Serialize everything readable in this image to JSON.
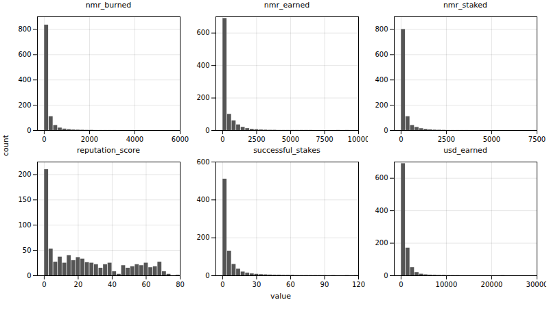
{
  "chart_data": [
    {
      "type": "histogram",
      "title": "nmr_burned",
      "color": "#555555",
      "grid": true,
      "xlim": [
        -300,
        6000
      ],
      "ylim": [
        0,
        900
      ],
      "xticks": [
        0,
        2000,
        4000,
        6000
      ],
      "yticks": [
        0,
        200,
        400,
        600,
        800
      ],
      "bins": [
        0,
        200,
        400,
        600,
        800,
        1000,
        1200,
        1400,
        1600,
        1800,
        2000,
        2200,
        2400,
        2600,
        2800,
        3000,
        3200,
        3400,
        3600,
        3800,
        4000,
        4200,
        4400,
        4600,
        4800,
        5000,
        5200,
        5400,
        5600,
        5800,
        6000
      ],
      "values": [
        835,
        110,
        40,
        20,
        12,
        8,
        5,
        4,
        3,
        2,
        2,
        1,
        1,
        1,
        1,
        1,
        0,
        0,
        0,
        0,
        0,
        0,
        0,
        0,
        0,
        0,
        0,
        0,
        0,
        0
      ]
    },
    {
      "type": "histogram",
      "title": "nmr_earned",
      "color": "#555555",
      "grid": true,
      "xlim": [
        -500,
        10000
      ],
      "ylim": [
        0,
        700
      ],
      "xticks": [
        0,
        2500,
        5000,
        7500,
        10000
      ],
      "yticks": [
        0,
        200,
        400,
        600
      ],
      "bins": [
        0,
        333.3333333333333,
        666.6666666666666,
        1000,
        1333.3333333333333,
        1666.6666666666667,
        2000,
        2333.3333333333335,
        2666.6666666666665,
        3000,
        3333.3333333333335,
        3666.6666666666665,
        4000,
        4333.333333333333,
        4666.666666666667,
        5000,
        5333.333333333333,
        5666.666666666667,
        6000,
        6333.333333333333,
        6666.666666666667,
        7000,
        7333.333333333333,
        7666.666666666667,
        8000,
        8333.333333333334,
        8666.666666666666,
        9000,
        9333.333333333334,
        9666.666666666666,
        10000
      ],
      "values": [
        690,
        100,
        60,
        35,
        20,
        12,
        8,
        6,
        4,
        3,
        2,
        2,
        1,
        1,
        1,
        1,
        1,
        1,
        1,
        1,
        0,
        0,
        0,
        0,
        0,
        1,
        0,
        1,
        0,
        0
      ]
    },
    {
      "type": "histogram",
      "title": "nmr_staked",
      "color": "#555555",
      "grid": true,
      "xlim": [
        -375,
        7500
      ],
      "ylim": [
        0,
        900
      ],
      "xticks": [
        0,
        2500,
        5000,
        7500
      ],
      "yticks": [
        0,
        200,
        400,
        600,
        800
      ],
      "bins": [
        0,
        250,
        500,
        750,
        1000,
        1250,
        1500,
        1750,
        2000,
        2250,
        2500,
        2750,
        3000,
        3250,
        3500,
        3750,
        4000,
        4250,
        4500,
        4750,
        5000,
        5250,
        5500,
        5750,
        6000,
        6250,
        6500,
        6750,
        7000,
        7250,
        7500
      ],
      "values": [
        800,
        110,
        40,
        25,
        15,
        10,
        6,
        4,
        3,
        2,
        1,
        1,
        1,
        1,
        1,
        0,
        0,
        0,
        0,
        0,
        0,
        0,
        0,
        0,
        0,
        0,
        0,
        0,
        0,
        1
      ]
    },
    {
      "type": "histogram",
      "title": "reputation_score",
      "color": "#555555",
      "grid": true,
      "xlim": [
        -4,
        80
      ],
      "ylim": [
        0,
        225
      ],
      "xticks": [
        0,
        20,
        40,
        60,
        80
      ],
      "yticks": [
        0,
        50,
        100,
        150,
        200
      ],
      "bins": [
        0,
        2.6666666666666665,
        5.333333333333333,
        8,
        10.666666666666666,
        13.333333333333334,
        16,
        18.666666666666668,
        21.333333333333332,
        24,
        26.666666666666668,
        29.333333333333332,
        32,
        34.666666666666664,
        37.333333333333336,
        40,
        42.666666666666664,
        45.333333333333336,
        48,
        50.666666666666664,
        53.333333333333336,
        56,
        58.666666666666664,
        61.333333333333336,
        64,
        66.66666666666667,
        69.33333333333333,
        72,
        74.66666666666667,
        77.33333333333333,
        80
      ],
      "values": [
        210,
        53,
        27,
        37,
        25,
        40,
        30,
        36,
        33,
        26,
        25,
        22,
        15,
        22,
        25,
        8,
        3,
        20,
        15,
        18,
        22,
        20,
        25,
        16,
        18,
        27,
        8,
        3,
        0,
        1
      ]
    },
    {
      "type": "histogram",
      "title": "successful_stakes",
      "color": "#555555",
      "grid": true,
      "xlim": [
        -6,
        120
      ],
      "ylim": [
        0,
        600
      ],
      "xticks": [
        0,
        30,
        60,
        90,
        120
      ],
      "yticks": [
        0,
        200,
        400,
        600
      ],
      "bins": [
        0,
        4,
        8,
        12,
        16,
        20,
        24,
        28,
        32,
        36,
        40,
        44,
        48,
        52,
        56,
        60,
        64,
        68,
        72,
        76,
        80,
        84,
        88,
        92,
        96,
        100,
        104,
        108,
        112,
        116,
        120
      ],
      "values": [
        510,
        130,
        60,
        35,
        20,
        14,
        10,
        8,
        6,
        5,
        4,
        3,
        3,
        2,
        2,
        2,
        1,
        1,
        1,
        1,
        1,
        1,
        1,
        0,
        1,
        0,
        0,
        1,
        0,
        1
      ]
    },
    {
      "type": "histogram",
      "title": "usd_earned",
      "color": "#555555",
      "grid": true,
      "xlim": [
        -1500,
        30000
      ],
      "ylim": [
        0,
        700
      ],
      "xticks": [
        0,
        10000,
        20000,
        30000
      ],
      "yticks": [
        0,
        200,
        400,
        600
      ],
      "bins": [
        0,
        1000,
        2000,
        3000,
        4000,
        5000,
        6000,
        7000,
        8000,
        9000,
        10000,
        11000,
        12000,
        13000,
        14000,
        15000,
        16000,
        17000,
        18000,
        19000,
        20000,
        21000,
        22000,
        23000,
        24000,
        25000,
        26000,
        27000,
        28000,
        29000,
        30000
      ],
      "values": [
        690,
        170,
        50,
        20,
        10,
        6,
        4,
        3,
        2,
        2,
        1,
        1,
        1,
        0,
        0,
        0,
        0,
        0,
        0,
        0,
        0,
        0,
        1,
        0,
        0,
        0,
        0,
        0,
        0,
        0
      ]
    }
  ],
  "xlabel": "value",
  "ylabel": "count"
}
